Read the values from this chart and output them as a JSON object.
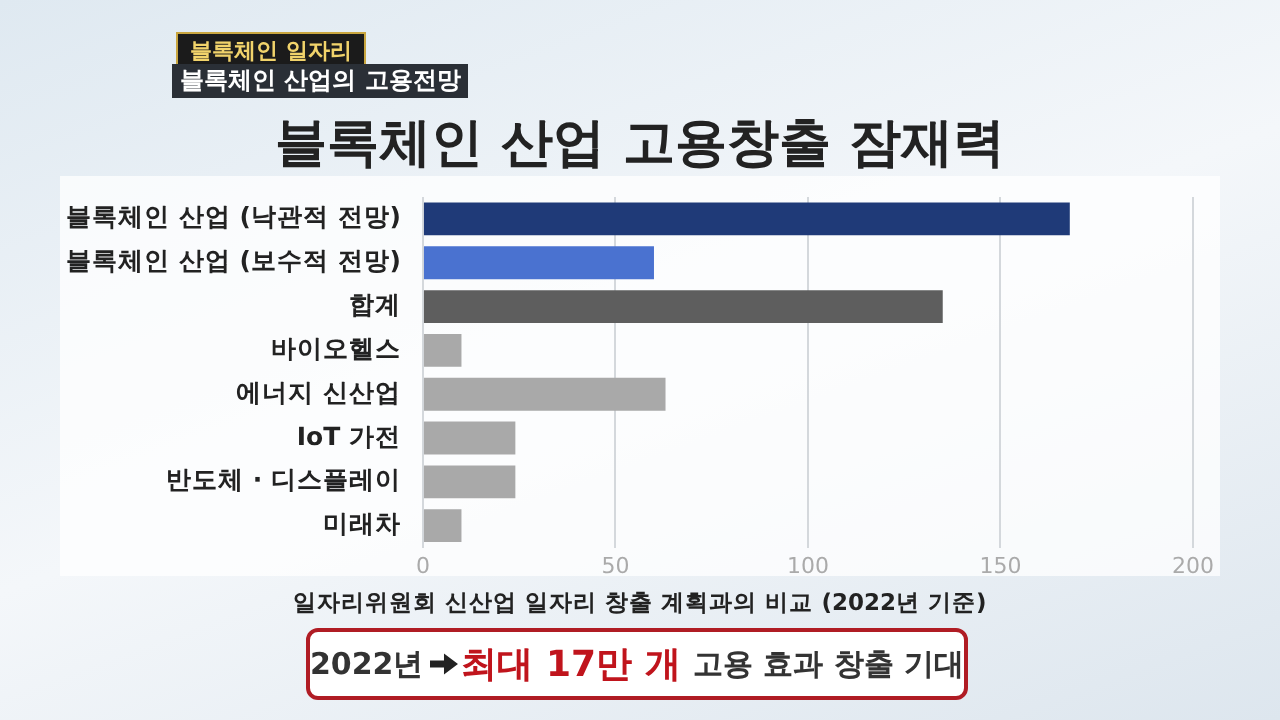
{
  "chart_data": {
    "type": "bar",
    "orientation": "horizontal",
    "title": "블록체인 산업 고용창출 잠재력",
    "subtitle": "블록체인 산업의 고용전망",
    "annotations": [
      "블록체인 일자리",
      "일자리위원회 신산업 일자리 창출 계획과의 비교 (2022년 기준)",
      "2022년",
      "최대 17만 개",
      "고용 효과 창출 기대"
    ],
    "categories": [
      "블록체인 산업 (낙관적 전망)",
      "블록체인 산업 (보수적 전망)",
      "합계",
      "바이오헬스",
      "에너지 신산업",
      "IoT 가전",
      "반도체 · 디스플레이",
      "미래차"
    ],
    "values": [
      168,
      60,
      135,
      10,
      63,
      24,
      24,
      10
    ],
    "colors": [
      "#1f3a78",
      "#4a72d0",
      "#5e5e5e",
      "#a9a9a9",
      "#a9a9a9",
      "#a9a9a9",
      "#a9a9a9",
      "#a9a9a9"
    ],
    "xlim": [
      0,
      200
    ],
    "xticks": [
      0,
      50,
      100,
      150,
      200
    ],
    "grid": "x",
    "legend": false
  }
}
